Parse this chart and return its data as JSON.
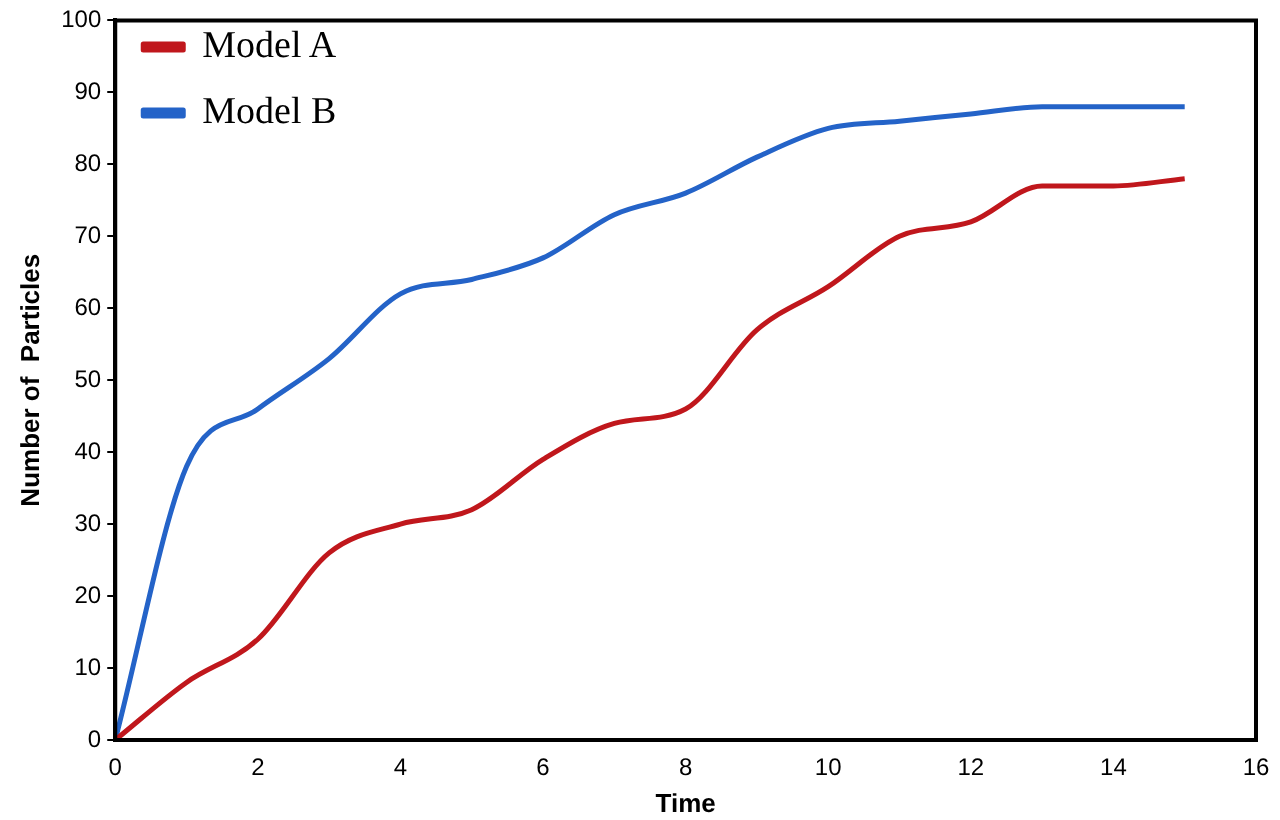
{
  "chart_data": {
    "type": "line",
    "xlabel": "Time",
    "ylabel": "Number of  Particles",
    "x": [
      0,
      1,
      2,
      3,
      4,
      5,
      6,
      7,
      8,
      9,
      10,
      11,
      12,
      13,
      14,
      15
    ],
    "series": [
      {
        "name": "Model A",
        "color": "#c0171c",
        "values": [
          0,
          8,
          14,
          26,
          30,
          32,
          39,
          44,
          46,
          57,
          63,
          70,
          72,
          77,
          77,
          78
        ]
      },
      {
        "name": "Model B",
        "color": "#2463c8",
        "values": [
          0,
          38,
          46,
          53,
          62,
          64,
          67,
          73,
          76,
          81,
          85,
          86,
          87,
          88,
          88,
          88
        ]
      }
    ],
    "xlim": [
      0,
      16
    ],
    "xticks": [
      0,
      2,
      4,
      6,
      8,
      10,
      12,
      14,
      16
    ],
    "ylim": [
      0,
      100
    ],
    "yticks": [
      0,
      10,
      20,
      30,
      40,
      50,
      60,
      70,
      80,
      90,
      100
    ],
    "grid": false,
    "legend": "top left",
    "marker": "none",
    "line_style": "solid"
  }
}
